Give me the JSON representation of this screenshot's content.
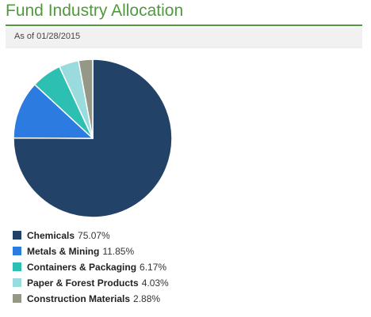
{
  "page": {
    "title": "Fund Industry Allocation",
    "as_of": "As of 01/28/2015",
    "accent_color": "#4f9a3c"
  },
  "chart_data": {
    "type": "pie",
    "title": "Fund Industry Allocation",
    "categories": [
      "Chemicals",
      "Metals & Mining",
      "Containers & Packaging",
      "Paper & Forest Products",
      "Construction Materials"
    ],
    "values": [
      75.07,
      11.85,
      6.17,
      4.03,
      2.88
    ],
    "value_labels": [
      "75.07%",
      "11.85%",
      "6.17%",
      "4.03%",
      "2.88%"
    ],
    "colors": [
      "#234268",
      "#2c7be0",
      "#2ebfb3",
      "#9adbdd",
      "#959886"
    ],
    "start_angle_deg": 0,
    "direction": "clockwise",
    "legend_position": "bottom-left"
  }
}
